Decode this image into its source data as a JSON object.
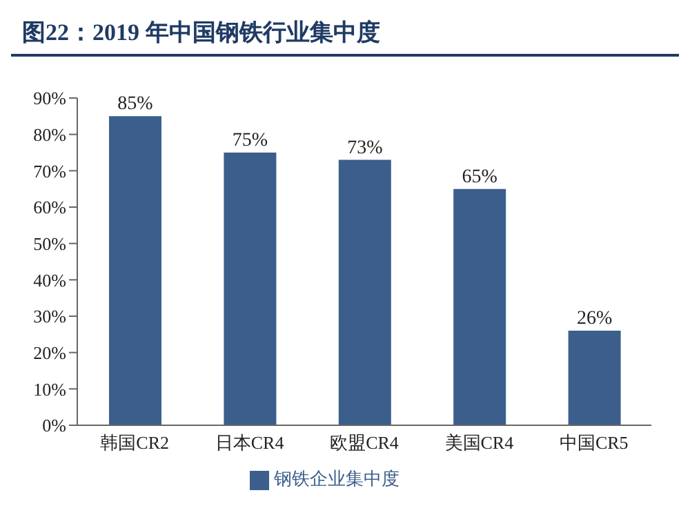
{
  "chart_data": {
    "type": "bar",
    "title": "图22：2019 年中国钢铁行业集中度",
    "categories": [
      "韩国CR2",
      "日本CR4",
      "欧盟CR4",
      "美国CR4",
      "中国CR5"
    ],
    "series": [
      {
        "name": "钢铁企业集中度",
        "color": "#3b5e8c",
        "values": [
          85,
          75,
          73,
          65,
          26
        ],
        "value_labels": [
          "85%",
          "75%",
          "73%",
          "65%",
          "26%"
        ]
      }
    ],
    "ylim": [
      0,
      90
    ],
    "yticks": [
      {
        "value": 0,
        "label": "0%"
      },
      {
        "value": 10,
        "label": "10%"
      },
      {
        "value": 20,
        "label": "20%"
      },
      {
        "value": 30,
        "label": "30%"
      },
      {
        "value": 40,
        "label": "40%"
      },
      {
        "value": 50,
        "label": "50%"
      },
      {
        "value": 60,
        "label": "60%"
      },
      {
        "value": 70,
        "label": "70%"
      },
      {
        "value": 80,
        "label": "80%"
      },
      {
        "value": 90,
        "label": "90%"
      }
    ],
    "grid": false,
    "legend": "bottom"
  }
}
